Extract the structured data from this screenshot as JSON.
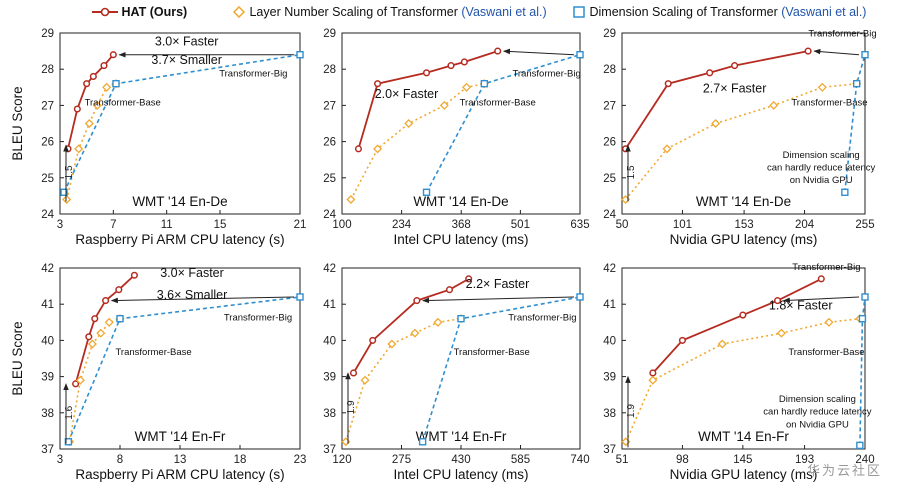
{
  "legend": {
    "hat": "HAT (Ours)",
    "layer": "Layer Number Scaling of Transformer",
    "layer_cite": "(Vaswani et al.)",
    "dim": "Dimension Scaling of Transformer",
    "dim_cite": "(Vaswani et al.)"
  },
  "colors": {
    "hat": "#b52b20",
    "layer": "#f0a830",
    "dim": "#2f8fd0",
    "cite": "#2255aa"
  },
  "watermark": "华为云社区",
  "chart_data": [
    {
      "type": "line",
      "dataset": "WMT '14 En-De",
      "xlabel": "Raspberry Pi ARM CPU latency (s)",
      "ylabel": "BLEU Score",
      "xlim": [
        3,
        21
      ],
      "ylim": [
        24,
        29
      ],
      "xticks": [
        "3",
        "7",
        "11",
        "15",
        "21"
      ],
      "xtick_values": [
        3,
        7,
        11,
        15,
        21
      ],
      "yticks": [
        24,
        25,
        26,
        27,
        28,
        29
      ],
      "series": [
        {
          "name": "HAT (Ours)",
          "x": [
            3.6,
            4.3,
            5.0,
            5.5,
            6.3,
            7.0
          ],
          "y": [
            25.8,
            26.9,
            27.6,
            27.8,
            28.1,
            28.4
          ]
        },
        {
          "name": "Layer Number Scaling of Transformer",
          "x": [
            3.5,
            4.4,
            5.2,
            5.8,
            6.5,
            7.2
          ],
          "y": [
            24.4,
            25.8,
            26.5,
            27.0,
            27.5,
            27.6
          ]
        },
        {
          "name": "Dimension Scaling of Transformer",
          "x": [
            3.3,
            7.2,
            21.0
          ],
          "y": [
            24.6,
            27.6,
            28.4
          ]
        }
      ],
      "annotations": [
        {
          "text": "3.0× Faster",
          "x": 12.5,
          "y": 28.65
        },
        {
          "text": "3.7× Smaller",
          "x": 12.5,
          "y": 28.15
        },
        {
          "text": "Transformer-Big",
          "x": 17.5,
          "y": 27.8
        },
        {
          "text": "Transformer-Base",
          "x": 7.7,
          "y": 27.0
        }
      ],
      "gap_label": "1.5"
    },
    {
      "type": "line",
      "dataset": "WMT '14 En-De",
      "xlabel": "Intel CPU latency (ms)",
      "ylabel": "",
      "xlim": [
        100,
        635
      ],
      "ylim": [
        24,
        29
      ],
      "xticks": [
        "100",
        "234",
        "368",
        "501",
        "635"
      ],
      "xtick_values": [
        100,
        234,
        368,
        501,
        635
      ],
      "yticks": [
        24,
        25,
        26,
        27,
        28,
        29
      ],
      "series": [
        {
          "name": "HAT (Ours)",
          "x": [
            137,
            180,
            290,
            345,
            375,
            450
          ],
          "y": [
            25.8,
            27.6,
            27.9,
            28.1,
            28.2,
            28.5
          ]
        },
        {
          "name": "Layer Number Scaling of Transformer",
          "x": [
            120,
            180,
            250,
            330,
            380,
            420
          ],
          "y": [
            24.4,
            25.8,
            26.5,
            27.0,
            27.5,
            27.6
          ]
        },
        {
          "name": "Dimension Scaling of Transformer",
          "x": [
            290,
            420,
            635
          ],
          "y": [
            24.6,
            27.6,
            28.4
          ]
        }
      ],
      "annotations": [
        {
          "text": "2.0× Faster",
          "x": 245,
          "y": 27.2
        },
        {
          "text": "Transformer-Big",
          "x": 560,
          "y": 27.8
        },
        {
          "text": "Transformer-Base",
          "x": 450,
          "y": 27.0
        }
      ],
      "gap_label": ""
    },
    {
      "type": "line",
      "dataset": "WMT '14 En-De",
      "xlabel": "Nvidia GPU latency (ms)",
      "ylabel": "",
      "xlim": [
        50,
        255
      ],
      "ylim": [
        24,
        29
      ],
      "xticks": [
        "50",
        "101",
        "153",
        "204",
        "255"
      ],
      "xtick_values": [
        50,
        101,
        153,
        204,
        255
      ],
      "yticks": [
        24,
        25,
        26,
        27,
        28,
        29
      ],
      "series": [
        {
          "name": "HAT (Ours)",
          "x": [
            53,
            89,
            124,
            145,
            207
          ],
          "y": [
            25.8,
            27.6,
            27.9,
            28.1,
            28.5
          ]
        },
        {
          "name": "Layer Number Scaling of Transformer",
          "x": [
            53,
            88,
            129,
            178,
            219,
            248
          ],
          "y": [
            24.4,
            25.8,
            26.5,
            27.0,
            27.5,
            27.6
          ]
        },
        {
          "name": "Dimension Scaling of Transformer",
          "x": [
            238,
            248,
            255
          ],
          "y": [
            24.6,
            27.6,
            28.4
          ]
        }
      ],
      "annotations": [
        {
          "text": "2.7× Faster",
          "x": 145,
          "y": 27.35
        },
        {
          "text": "Transformer-Big",
          "x": 236,
          "y": 28.9
        },
        {
          "text": "Transformer-Base",
          "x": 225,
          "y": 27.0
        },
        {
          "text": "Dimension scaling",
          "x": 218,
          "y": 25.55
        },
        {
          "text": "can hardly reduce latency",
          "x": 218,
          "y": 25.2
        },
        {
          "text": "on Nvidia GPU",
          "x": 218,
          "y": 24.85
        }
      ],
      "gap_label": "1.5"
    },
    {
      "type": "line",
      "dataset": "WMT '14 En-Fr",
      "xlabel": "Raspberry Pi ARM CPU latency (s)",
      "ylabel": "BLEU Score",
      "xlim": [
        3,
        23
      ],
      "ylim": [
        37,
        42
      ],
      "xticks": [
        "3",
        "8",
        "13",
        "18",
        "23"
      ],
      "xtick_values": [
        3,
        8,
        13,
        18,
        23
      ],
      "yticks": [
        37,
        38,
        39,
        40,
        41,
        42
      ],
      "series": [
        {
          "name": "HAT (Ours)",
          "x": [
            4.3,
            5.4,
            5.9,
            6.8,
            7.9,
            9.2
          ],
          "y": [
            38.8,
            40.1,
            40.6,
            41.1,
            41.4,
            41.8
          ]
        },
        {
          "name": "Layer Number Scaling of Transformer",
          "x": [
            3.8,
            4.7,
            5.7,
            6.4,
            7.1,
            8.0
          ],
          "y": [
            37.2,
            38.9,
            39.9,
            40.2,
            40.5,
            40.6
          ]
        },
        {
          "name": "Dimension Scaling of Transformer",
          "x": [
            3.7,
            8.0,
            23.0
          ],
          "y": [
            37.2,
            40.6,
            41.2
          ]
        }
      ],
      "annotations": [
        {
          "text": "3.0× Faster",
          "x": 14.0,
          "y": 41.75
        },
        {
          "text": "3.6× Smaller",
          "x": 14.0,
          "y": 41.15
        },
        {
          "text": "Transformer-Big",
          "x": 19.5,
          "y": 40.55
        },
        {
          "text": "Transformer-Base",
          "x": 10.8,
          "y": 39.6
        }
      ],
      "gap_label": "1.6"
    },
    {
      "type": "line",
      "dataset": "WMT '14 En-Fr",
      "xlabel": "Intel CPU latency (ms)",
      "ylabel": "",
      "xlim": [
        120,
        740
      ],
      "ylim": [
        37,
        42
      ],
      "xticks": [
        "120",
        "275",
        "430",
        "585",
        "740"
      ],
      "xtick_values": [
        120,
        275,
        430,
        585,
        740
      ],
      "yticks": [
        37,
        38,
        39,
        40,
        41,
        42
      ],
      "series": [
        {
          "name": "HAT (Ours)",
          "x": [
            150,
            200,
            315,
            400,
            450
          ],
          "y": [
            39.1,
            40.0,
            41.1,
            41.4,
            41.7
          ]
        },
        {
          "name": "Layer Number Scaling of Transformer",
          "x": [
            130,
            180,
            250,
            310,
            370,
            430
          ],
          "y": [
            37.2,
            38.9,
            39.9,
            40.2,
            40.5,
            40.6
          ]
        },
        {
          "name": "Dimension Scaling of Transformer",
          "x": [
            330,
            430,
            740
          ],
          "y": [
            37.2,
            40.6,
            41.2
          ]
        }
      ],
      "annotations": [
        {
          "text": "2.2× Faster",
          "x": 525,
          "y": 41.45
        },
        {
          "text": "Transformer-Big",
          "x": 642,
          "y": 40.55
        },
        {
          "text": "Transformer-Base",
          "x": 510,
          "y": 39.6
        }
      ],
      "gap_label": "1.9"
    },
    {
      "type": "line",
      "dataset": "WMT '14 En-Fr",
      "xlabel": "Nvidia GPU latency (ms)",
      "ylabel": "",
      "xlim": [
        51,
        240
      ],
      "ylim": [
        37,
        42
      ],
      "xticks": [
        "51",
        "98",
        "145",
        "193",
        "240"
      ],
      "xtick_values": [
        51,
        98,
        145,
        193,
        240
      ],
      "yticks": [
        37,
        38,
        39,
        40,
        41,
        42
      ],
      "series": [
        {
          "name": "HAT (Ours)",
          "x": [
            75,
            98,
            145,
            172,
            206
          ],
          "y": [
            39.1,
            40.0,
            40.7,
            41.1,
            41.7
          ]
        },
        {
          "name": "Layer Number Scaling of Transformer",
          "x": [
            54,
            75,
            129,
            175,
            212,
            236
          ],
          "y": [
            37.2,
            38.9,
            39.9,
            40.2,
            40.5,
            40.6
          ]
        },
        {
          "name": "Dimension Scaling of Transformer",
          "x": [
            236,
            238,
            240
          ],
          "y": [
            37.1,
            40.6,
            41.2
          ]
        }
      ],
      "annotations": [
        {
          "text": "1.8× Faster",
          "x": 190,
          "y": 40.85
        },
        {
          "text": "Transformer-Big",
          "x": 210,
          "y": 41.95
        },
        {
          "text": "Transformer-Base",
          "x": 210,
          "y": 39.6
        },
        {
          "text": "Dimension scaling",
          "x": 203,
          "y": 38.3
        },
        {
          "text": "can hardly reduce latency",
          "x": 203,
          "y": 37.95
        },
        {
          "text": "on Nvidia GPU",
          "x": 203,
          "y": 37.6
        }
      ],
      "gap_label": "1.9"
    }
  ]
}
